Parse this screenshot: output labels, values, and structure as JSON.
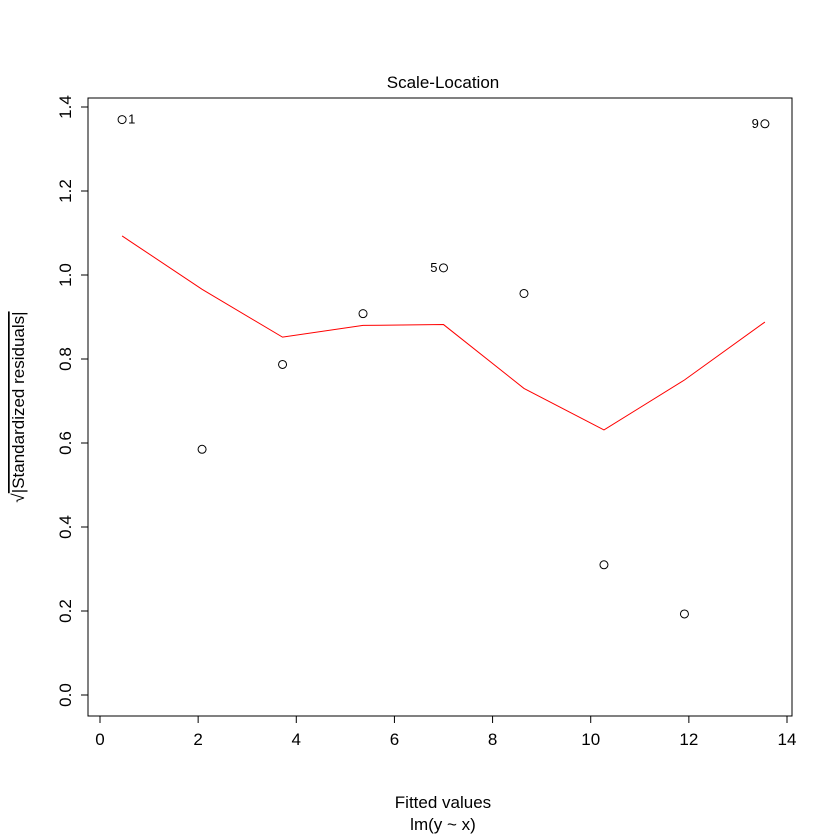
{
  "chart_data": {
    "type": "scatter",
    "title": "Scale-Location",
    "xlabel": "Fitted values",
    "subtitle": "lm(y ~ x)",
    "ylabel_radical": "√",
    "ylabel_text": "|Standardized residuals|",
    "xlim": [
      0,
      14
    ],
    "ylim": [
      0,
      1.4
    ],
    "xticks": [
      0,
      2,
      4,
      6,
      8,
      10,
      12,
      14
    ],
    "yticks": [
      0.0,
      0.2,
      0.4,
      0.6,
      0.8,
      1.0,
      1.2,
      1.4
    ],
    "ytick_labels": [
      "0.0",
      "0.2",
      "0.4",
      "0.6",
      "0.8",
      "1.0",
      "1.2",
      "1.4"
    ],
    "points": [
      {
        "x": 0.45,
        "y": 1.37,
        "label": "1"
      },
      {
        "x": 2.08,
        "y": 0.585,
        "label": ""
      },
      {
        "x": 3.72,
        "y": 0.787,
        "label": ""
      },
      {
        "x": 5.36,
        "y": 0.908,
        "label": ""
      },
      {
        "x": 7.0,
        "y": 1.017,
        "label": "5"
      },
      {
        "x": 8.64,
        "y": 0.956,
        "label": ""
      },
      {
        "x": 10.27,
        "y": 0.31,
        "label": ""
      },
      {
        "x": 11.91,
        "y": 0.193,
        "label": ""
      },
      {
        "x": 13.55,
        "y": 1.36,
        "label": "9"
      }
    ],
    "smoother": {
      "name": "",
      "color": "#ff0000",
      "x": [
        0.45,
        2.08,
        3.72,
        5.36,
        7.0,
        8.64,
        10.27,
        11.91,
        13.55
      ],
      "y": [
        1.093,
        0.966,
        0.852,
        0.88,
        0.882,
        0.73,
        0.631,
        0.75,
        0.888
      ]
    },
    "grid": false,
    "box": true
  }
}
